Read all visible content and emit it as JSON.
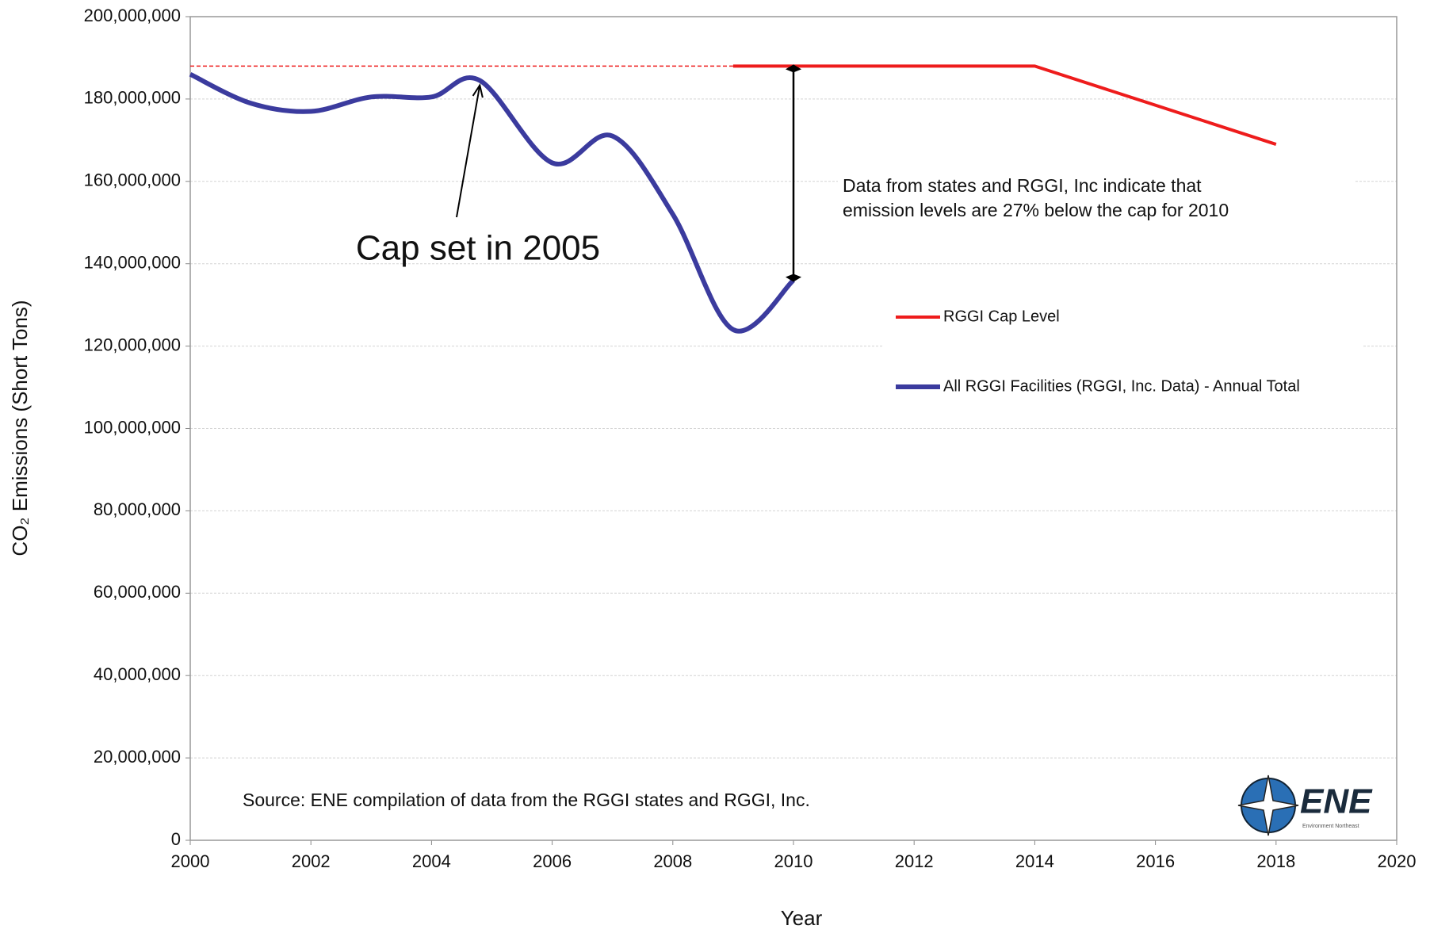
{
  "chart_data": {
    "type": "line",
    "y_label": "CO₂ Emissions (Short Tons)",
    "x_label": "Year",
    "xlim": [
      2000,
      2020
    ],
    "xticks": [
      2000,
      2002,
      2004,
      2006,
      2008,
      2010,
      2012,
      2014,
      2016,
      2018,
      2020
    ],
    "ylim": [
      0,
      200000000
    ],
    "yticks": [
      {
        "value": 0,
        "label": "0"
      },
      {
        "value": 20000000,
        "label": "20,000,000"
      },
      {
        "value": 40000000,
        "label": "40,000,000"
      },
      {
        "value": 60000000,
        "label": "60,000,000"
      },
      {
        "value": 80000000,
        "label": "80,000,000"
      },
      {
        "value": 100000000,
        "label": "100,000,000"
      },
      {
        "value": 120000000,
        "label": "120,000,000"
      },
      {
        "value": 140000000,
        "label": "140,000,000"
      },
      {
        "value": 160000000,
        "label": "160,000,000"
      },
      {
        "value": 180000000,
        "label": "180,000,000"
      },
      {
        "value": 200000000,
        "label": "200,000,000"
      }
    ],
    "grid": true,
    "series": [
      {
        "name": "RGGI Cap Level",
        "color": "#ee1c1c",
        "smooth": false,
        "x": [
          2009,
          2014,
          2018
        ],
        "values": [
          188000000,
          188000000,
          169000000
        ]
      },
      {
        "name": "All RGGI Facilities (RGGI, Inc. Data) - Annual Total",
        "color": "#3b3b9e",
        "smooth": true,
        "x": [
          2000,
          2001,
          2002,
          2003,
          2004,
          2004.8,
          2006,
          2007,
          2008,
          2009,
          2010
        ],
        "values": [
          186000000,
          179000000,
          177000000,
          180500000,
          180500000,
          184500000,
          164500000,
          171000000,
          152000000,
          124000000,
          136000000
        ]
      }
    ],
    "reference_line": {
      "x": [
        2000,
        2009
      ],
      "value": 188000000,
      "color": "#ee1c1c"
    },
    "gap_arrow": {
      "x": 2010,
      "from": 188000000,
      "to": 136000000
    },
    "cap_annotation": {
      "text": "Cap set in 2005",
      "target_x": 2004.8,
      "target_y": 184500000
    },
    "note_lines": [
      "Data from states and RGGI,  Inc indicate that",
      "emission levels are 27% below the cap for 2010"
    ],
    "source": "Source: ENE compilation of data from the RGGI states  and RGGI, Inc.",
    "logo": {
      "text": "ENE",
      "subtext": "Environment Northeast"
    }
  }
}
